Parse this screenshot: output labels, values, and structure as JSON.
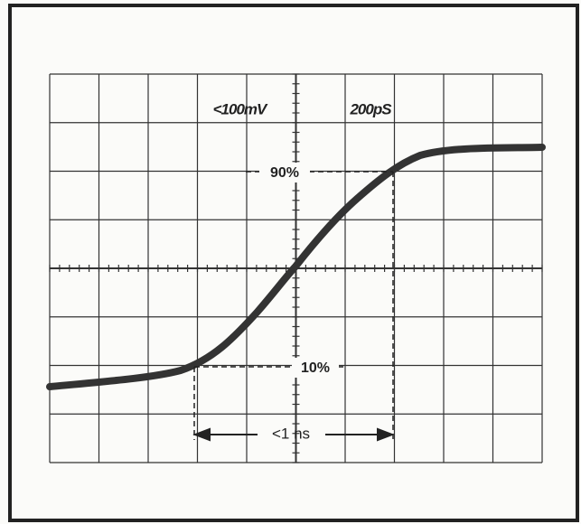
{
  "scope": {
    "volts_per_div": "<100mV",
    "time_per_div": "200pS",
    "upper_marker": "90%",
    "lower_marker": "10%",
    "rise_time": "<1 ns"
  }
}
